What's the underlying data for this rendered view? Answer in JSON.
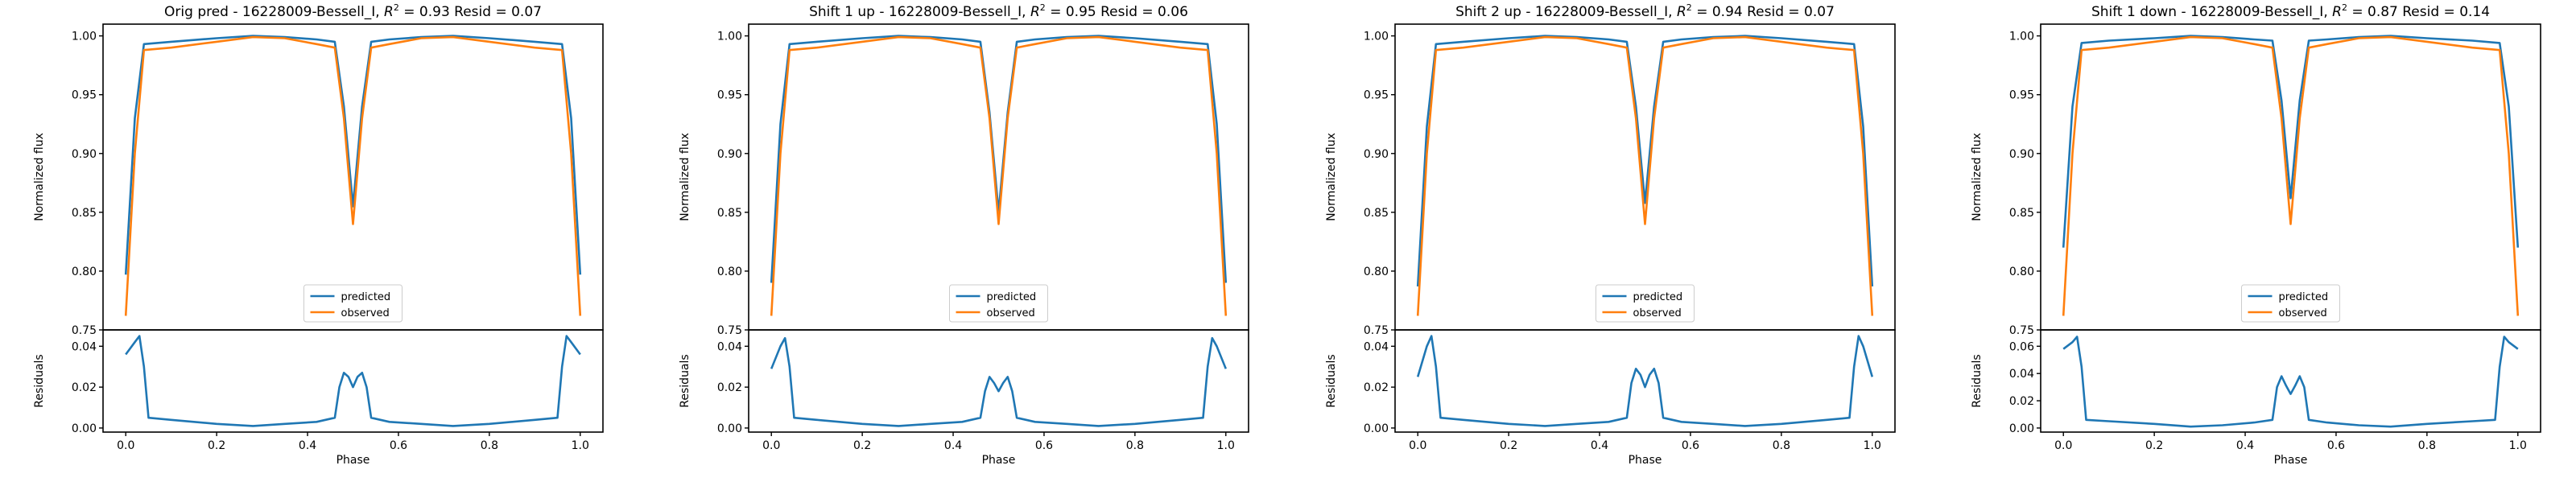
{
  "colors": {
    "predicted": "#1f77b4",
    "observed": "#ff7f0e",
    "axes": "#000000",
    "background": "#ffffff"
  },
  "chart_data": [
    {
      "type": "line",
      "title": "Orig pred - 16228009-Bessell_I, R² = 0.93 Resid = 0.07",
      "title_parts": {
        "prefix": "Orig pred - 16228009-Bessell_I, ",
        "r2_symbol": "R",
        "r2_sup": "2",
        "suffix": " = 0.93 Resid = 0.07"
      },
      "xlabel": "Phase",
      "ylabel": "Normalized flux",
      "residual_ylabel": "Residuals",
      "xlim": [
        -0.05,
        1.05
      ],
      "ylim": [
        0.75,
        1.01
      ],
      "residual_ylim": [
        -0.002,
        0.048
      ],
      "xticks": [
        "0.0",
        "0.2",
        "0.4",
        "0.6",
        "0.8",
        "1.0"
      ],
      "yticks": [
        "0.75",
        "0.80",
        "0.85",
        "0.90",
        "0.95",
        "1.00"
      ],
      "residual_yticks": [
        "0.00",
        "0.02",
        "0.04"
      ],
      "legend": {
        "position": "lower center",
        "entries": [
          "predicted",
          "observed"
        ]
      },
      "grid": false,
      "series": [
        {
          "name": "predicted",
          "x": [
            0,
            0.02,
            0.04,
            0.1,
            0.2,
            0.28,
            0.35,
            0.42,
            0.46,
            0.48,
            0.5,
            0.52,
            0.54,
            0.58,
            0.65,
            0.72,
            0.8,
            0.9,
            0.96,
            0.98,
            1.0
          ],
          "y": [
            0.797,
            0.93,
            0.993,
            0.995,
            0.998,
            1.0,
            0.999,
            0.997,
            0.995,
            0.94,
            0.855,
            0.94,
            0.995,
            0.997,
            0.999,
            1.0,
            0.998,
            0.995,
            0.993,
            0.93,
            0.797
          ]
        },
        {
          "name": "observed",
          "x": [
            0,
            0.02,
            0.04,
            0.1,
            0.2,
            0.28,
            0.35,
            0.42,
            0.46,
            0.48,
            0.5,
            0.52,
            0.54,
            0.58,
            0.65,
            0.72,
            0.8,
            0.9,
            0.96,
            0.98,
            1.0
          ],
          "y": [
            0.762,
            0.9,
            0.988,
            0.99,
            0.995,
            0.999,
            0.998,
            0.993,
            0.99,
            0.93,
            0.84,
            0.93,
            0.99,
            0.993,
            0.998,
            0.999,
            0.995,
            0.99,
            0.988,
            0.9,
            0.762
          ]
        },
        {
          "name": "residuals",
          "x": [
            0,
            0.02,
            0.03,
            0.04,
            0.05,
            0.1,
            0.2,
            0.28,
            0.35,
            0.42,
            0.46,
            0.47,
            0.48,
            0.49,
            0.5,
            0.51,
            0.52,
            0.53,
            0.54,
            0.58,
            0.65,
            0.72,
            0.8,
            0.9,
            0.95,
            0.96,
            0.97,
            0.98,
            1.0
          ],
          "y": [
            0.036,
            0.042,
            0.045,
            0.03,
            0.005,
            0.004,
            0.002,
            0.001,
            0.002,
            0.003,
            0.005,
            0.02,
            0.027,
            0.025,
            0.02,
            0.025,
            0.027,
            0.02,
            0.005,
            0.003,
            0.002,
            0.001,
            0.002,
            0.004,
            0.005,
            0.03,
            0.045,
            0.042,
            0.036
          ]
        }
      ]
    },
    {
      "type": "line",
      "title": "Shift 1 up - 16228009-Bessell_I, R² = 0.95 Resid = 0.06",
      "title_parts": {
        "prefix": "Shift 1 up - 16228009-Bessell_I, ",
        "r2_symbol": "R",
        "r2_sup": "2",
        "suffix": " = 0.95 Resid = 0.06"
      },
      "xlabel": "Phase",
      "ylabel": "Normalized flux",
      "residual_ylabel": "Residuals",
      "xlim": [
        -0.05,
        1.05
      ],
      "ylim": [
        0.75,
        1.01
      ],
      "residual_ylim": [
        -0.002,
        0.048
      ],
      "xticks": [
        "0.0",
        "0.2",
        "0.4",
        "0.6",
        "0.8",
        "1.0"
      ],
      "yticks": [
        "0.75",
        "0.80",
        "0.85",
        "0.90",
        "0.95",
        "1.00"
      ],
      "residual_yticks": [
        "0.00",
        "0.02",
        "0.04"
      ],
      "legend": {
        "position": "lower center",
        "entries": [
          "predicted",
          "observed"
        ]
      },
      "grid": false,
      "series": [
        {
          "name": "predicted",
          "x": [
            0,
            0.02,
            0.04,
            0.1,
            0.2,
            0.28,
            0.35,
            0.42,
            0.46,
            0.48,
            0.5,
            0.52,
            0.54,
            0.58,
            0.65,
            0.72,
            0.8,
            0.9,
            0.96,
            0.98,
            1.0
          ],
          "y": [
            0.79,
            0.925,
            0.993,
            0.995,
            0.998,
            1.0,
            0.999,
            0.997,
            0.995,
            0.935,
            0.85,
            0.935,
            0.995,
            0.997,
            0.999,
            1.0,
            0.998,
            0.995,
            0.993,
            0.925,
            0.79
          ]
        },
        {
          "name": "observed",
          "x": [
            0,
            0.02,
            0.04,
            0.1,
            0.2,
            0.28,
            0.35,
            0.42,
            0.46,
            0.48,
            0.5,
            0.52,
            0.54,
            0.58,
            0.65,
            0.72,
            0.8,
            0.9,
            0.96,
            0.98,
            1.0
          ],
          "y": [
            0.762,
            0.9,
            0.988,
            0.99,
            0.995,
            0.999,
            0.998,
            0.993,
            0.99,
            0.93,
            0.84,
            0.93,
            0.99,
            0.993,
            0.998,
            0.999,
            0.995,
            0.99,
            0.988,
            0.9,
            0.762
          ]
        },
        {
          "name": "residuals",
          "x": [
            0,
            0.02,
            0.03,
            0.04,
            0.05,
            0.1,
            0.2,
            0.28,
            0.35,
            0.42,
            0.46,
            0.47,
            0.48,
            0.49,
            0.5,
            0.51,
            0.52,
            0.53,
            0.54,
            0.58,
            0.65,
            0.72,
            0.8,
            0.9,
            0.95,
            0.96,
            0.97,
            0.98,
            1.0
          ],
          "y": [
            0.029,
            0.04,
            0.044,
            0.03,
            0.005,
            0.004,
            0.002,
            0.001,
            0.002,
            0.003,
            0.005,
            0.018,
            0.025,
            0.022,
            0.018,
            0.022,
            0.025,
            0.018,
            0.005,
            0.003,
            0.002,
            0.001,
            0.002,
            0.004,
            0.005,
            0.03,
            0.044,
            0.04,
            0.029
          ]
        }
      ]
    },
    {
      "type": "line",
      "title": "Shift 2 up - 16228009-Bessell_I, R² = 0.94 Resid = 0.07",
      "title_parts": {
        "prefix": "Shift 2 up - 16228009-Bessell_I, ",
        "r2_symbol": "R",
        "r2_sup": "2",
        "suffix": " = 0.94 Resid = 0.07"
      },
      "xlabel": "Phase",
      "ylabel": "Normalized flux",
      "residual_ylabel": "Residuals",
      "xlim": [
        -0.05,
        1.05
      ],
      "ylim": [
        0.75,
        1.01
      ],
      "residual_ylim": [
        -0.002,
        0.048
      ],
      "xticks": [
        "0.0",
        "0.2",
        "0.4",
        "0.6",
        "0.8",
        "1.0"
      ],
      "yticks": [
        "0.75",
        "0.80",
        "0.85",
        "0.90",
        "0.95",
        "1.00"
      ],
      "residual_yticks": [
        "0.00",
        "0.02",
        "0.04"
      ],
      "legend": {
        "position": "lower center",
        "entries": [
          "predicted",
          "observed"
        ]
      },
      "grid": false,
      "series": [
        {
          "name": "predicted",
          "x": [
            0,
            0.02,
            0.04,
            0.1,
            0.2,
            0.28,
            0.35,
            0.42,
            0.46,
            0.48,
            0.5,
            0.52,
            0.54,
            0.58,
            0.65,
            0.72,
            0.8,
            0.9,
            0.96,
            0.98,
            1.0
          ],
          "y": [
            0.787,
            0.923,
            0.993,
            0.995,
            0.998,
            1.0,
            0.999,
            0.997,
            0.995,
            0.94,
            0.858,
            0.94,
            0.995,
            0.997,
            0.999,
            1.0,
            0.998,
            0.995,
            0.993,
            0.923,
            0.787
          ]
        },
        {
          "name": "observed",
          "x": [
            0,
            0.02,
            0.04,
            0.1,
            0.2,
            0.28,
            0.35,
            0.42,
            0.46,
            0.48,
            0.5,
            0.52,
            0.54,
            0.58,
            0.65,
            0.72,
            0.8,
            0.9,
            0.96,
            0.98,
            1.0
          ],
          "y": [
            0.762,
            0.9,
            0.988,
            0.99,
            0.995,
            0.999,
            0.998,
            0.993,
            0.99,
            0.93,
            0.84,
            0.93,
            0.99,
            0.993,
            0.998,
            0.999,
            0.995,
            0.99,
            0.988,
            0.9,
            0.762
          ]
        },
        {
          "name": "residuals",
          "x": [
            0,
            0.02,
            0.03,
            0.04,
            0.05,
            0.1,
            0.2,
            0.28,
            0.35,
            0.42,
            0.46,
            0.47,
            0.48,
            0.49,
            0.5,
            0.51,
            0.52,
            0.53,
            0.54,
            0.58,
            0.65,
            0.72,
            0.8,
            0.9,
            0.95,
            0.96,
            0.97,
            0.98,
            1.0
          ],
          "y": [
            0.025,
            0.04,
            0.045,
            0.03,
            0.005,
            0.004,
            0.002,
            0.001,
            0.002,
            0.003,
            0.005,
            0.022,
            0.029,
            0.026,
            0.02,
            0.026,
            0.029,
            0.022,
            0.005,
            0.003,
            0.002,
            0.001,
            0.002,
            0.004,
            0.005,
            0.03,
            0.045,
            0.04,
            0.025
          ]
        }
      ]
    },
    {
      "type": "line",
      "title": "Shift 1 down - 16228009-Bessell_I, R² = 0.87 Resid = 0.14",
      "title_parts": {
        "prefix": "Shift 1 down - 16228009-Bessell_I, ",
        "r2_symbol": "R",
        "r2_sup": "2",
        "suffix": " = 0.87 Resid = 0.14"
      },
      "xlabel": "Phase",
      "ylabel": "Normalized flux",
      "residual_ylabel": "Residuals",
      "xlim": [
        -0.05,
        1.05
      ],
      "ylim": [
        0.75,
        1.01
      ],
      "residual_ylim": [
        -0.003,
        0.072
      ],
      "xticks": [
        "0.0",
        "0.2",
        "0.4",
        "0.6",
        "0.8",
        "1.0"
      ],
      "yticks": [
        "0.75",
        "0.80",
        "0.85",
        "0.90",
        "0.95",
        "1.00"
      ],
      "residual_yticks": [
        "0.00",
        "0.02",
        "0.04",
        "0.06"
      ],
      "legend": {
        "position": "lower center",
        "entries": [
          "predicted",
          "observed"
        ]
      },
      "grid": false,
      "series": [
        {
          "name": "predicted",
          "x": [
            0,
            0.02,
            0.04,
            0.1,
            0.2,
            0.28,
            0.35,
            0.42,
            0.46,
            0.48,
            0.5,
            0.52,
            0.54,
            0.58,
            0.65,
            0.72,
            0.8,
            0.9,
            0.96,
            0.98,
            1.0
          ],
          "y": [
            0.82,
            0.94,
            0.994,
            0.996,
            0.998,
            1.0,
            0.999,
            0.997,
            0.996,
            0.945,
            0.862,
            0.945,
            0.996,
            0.997,
            0.999,
            1.0,
            0.998,
            0.996,
            0.994,
            0.94,
            0.82
          ]
        },
        {
          "name": "observed",
          "x": [
            0,
            0.02,
            0.04,
            0.1,
            0.2,
            0.28,
            0.35,
            0.42,
            0.46,
            0.48,
            0.5,
            0.52,
            0.54,
            0.58,
            0.65,
            0.72,
            0.8,
            0.9,
            0.96,
            0.98,
            1.0
          ],
          "y": [
            0.762,
            0.9,
            0.988,
            0.99,
            0.995,
            0.999,
            0.998,
            0.993,
            0.99,
            0.93,
            0.84,
            0.93,
            0.99,
            0.993,
            0.998,
            0.999,
            0.995,
            0.99,
            0.988,
            0.9,
            0.762
          ]
        },
        {
          "name": "residuals",
          "x": [
            0,
            0.02,
            0.03,
            0.04,
            0.05,
            0.1,
            0.2,
            0.28,
            0.35,
            0.42,
            0.46,
            0.47,
            0.48,
            0.49,
            0.5,
            0.51,
            0.52,
            0.53,
            0.54,
            0.58,
            0.65,
            0.72,
            0.8,
            0.9,
            0.95,
            0.96,
            0.97,
            0.98,
            1.0
          ],
          "y": [
            0.058,
            0.063,
            0.067,
            0.045,
            0.006,
            0.005,
            0.003,
            0.001,
            0.002,
            0.004,
            0.006,
            0.03,
            0.038,
            0.031,
            0.025,
            0.031,
            0.038,
            0.03,
            0.006,
            0.004,
            0.002,
            0.001,
            0.003,
            0.005,
            0.006,
            0.045,
            0.067,
            0.063,
            0.058
          ]
        }
      ]
    }
  ]
}
